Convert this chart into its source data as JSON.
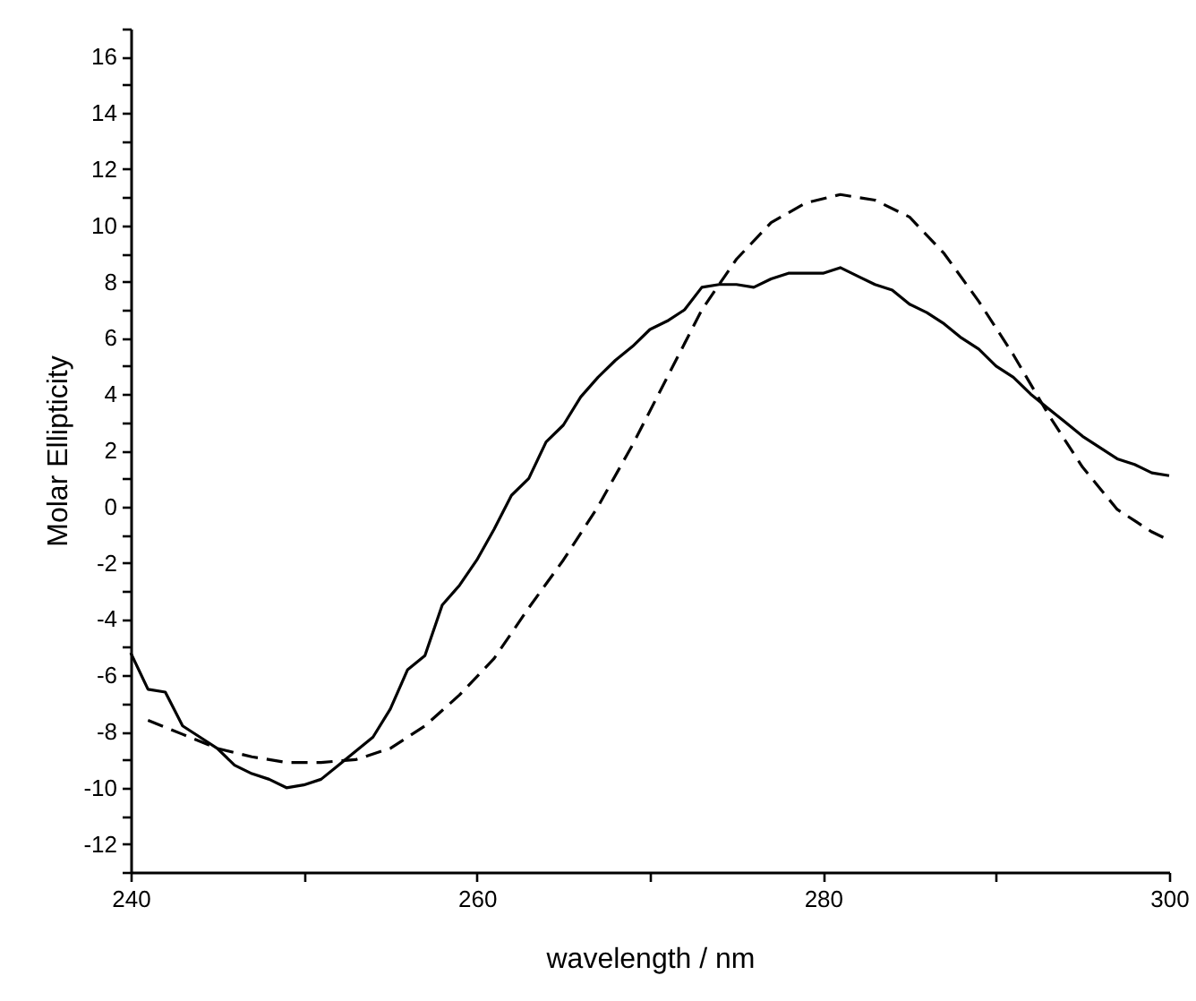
{
  "chart_data": {
    "type": "line",
    "xlabel": "wavelength / nm",
    "ylabel": "Molar Ellipticity",
    "xlim": [
      240,
      300
    ],
    "ylim": [
      -13,
      17
    ],
    "xticks": [
      240,
      {
        "value": 250,
        "label": null
      },
      260,
      {
        "value": 270,
        "label": null
      },
      280,
      {
        "value": 290,
        "label": null
      },
      300
    ],
    "yticks": [
      {
        "value": -13,
        "label": null
      },
      -12,
      {
        "value": -11,
        "label": null
      },
      -10,
      {
        "value": -9,
        "label": null
      },
      -8,
      {
        "value": -7,
        "label": null
      },
      -6,
      {
        "value": -5,
        "label": null
      },
      -4,
      {
        "value": -3,
        "label": null
      },
      -2,
      {
        "value": -1,
        "label": null
      },
      0,
      {
        "value": 1,
        "label": null
      },
      2,
      {
        "value": 3,
        "label": null
      },
      4,
      {
        "value": 5,
        "label": null
      },
      6,
      {
        "value": 7,
        "label": null
      },
      8,
      {
        "value": 9,
        "label": null
      },
      10,
      {
        "value": 11,
        "label": null
      },
      12,
      {
        "value": 13,
        "label": null
      },
      14,
      {
        "value": 15,
        "label": null
      },
      16,
      {
        "value": 17,
        "label": null
      }
    ],
    "grid": false,
    "marker": "none",
    "series": [
      {
        "color": "#000000",
        "line_style": "solid",
        "x": [
          240,
          241,
          242,
          243,
          244,
          245,
          246,
          247,
          248,
          249,
          250,
          251,
          252,
          253,
          254,
          255,
          256,
          257,
          258,
          259,
          260,
          261,
          262,
          263,
          264,
          265,
          266,
          267,
          268,
          269,
          270,
          271,
          272,
          273,
          274,
          275,
          276,
          277,
          278,
          279,
          280,
          281,
          282,
          283,
          284,
          285,
          286,
          287,
          288,
          289,
          290,
          291,
          292,
          293,
          294,
          295,
          296,
          297,
          298,
          299,
          300
        ],
        "values": [
          -5.2,
          -6.5,
          -6.6,
          -7.8,
          -8.2,
          -8.6,
          -9.2,
          -9.5,
          -9.7,
          -10.0,
          -9.9,
          -9.7,
          -9.2,
          -8.7,
          -8.2,
          -7.2,
          -5.8,
          -5.3,
          -3.5,
          -2.8,
          -1.9,
          -0.8,
          0.4,
          1.0,
          2.3,
          2.9,
          3.9,
          4.6,
          5.2,
          5.7,
          6.3,
          6.6,
          7.0,
          7.8,
          7.9,
          7.9,
          7.8,
          8.1,
          8.3,
          8.3,
          8.3,
          8.5,
          8.2,
          7.9,
          7.7,
          7.2,
          6.9,
          6.5,
          6.0,
          5.6,
          5.0,
          4.6,
          4.0,
          3.5,
          3.0,
          2.5,
          2.1,
          1.7,
          1.5,
          1.2,
          1.1
        ]
      },
      {
        "color": "#000000",
        "line_style": "dashed",
        "x": [
          241,
          243,
          245,
          247,
          249,
          251,
          253,
          255,
          257,
          259,
          261,
          263,
          265,
          267,
          269,
          271,
          273,
          275,
          277,
          279,
          281,
          283,
          285,
          287,
          289,
          291,
          293,
          295,
          297,
          299,
          300
        ],
        "values": [
          -7.6,
          -8.1,
          -8.6,
          -8.9,
          -9.1,
          -9.1,
          -9.0,
          -8.6,
          -7.8,
          -6.7,
          -5.4,
          -3.6,
          -1.9,
          0.0,
          2.2,
          4.6,
          7.0,
          8.8,
          10.1,
          10.8,
          11.1,
          10.9,
          10.3,
          9.0,
          7.3,
          5.4,
          3.3,
          1.4,
          -0.1,
          -0.9,
          -1.2
        ]
      }
    ]
  }
}
